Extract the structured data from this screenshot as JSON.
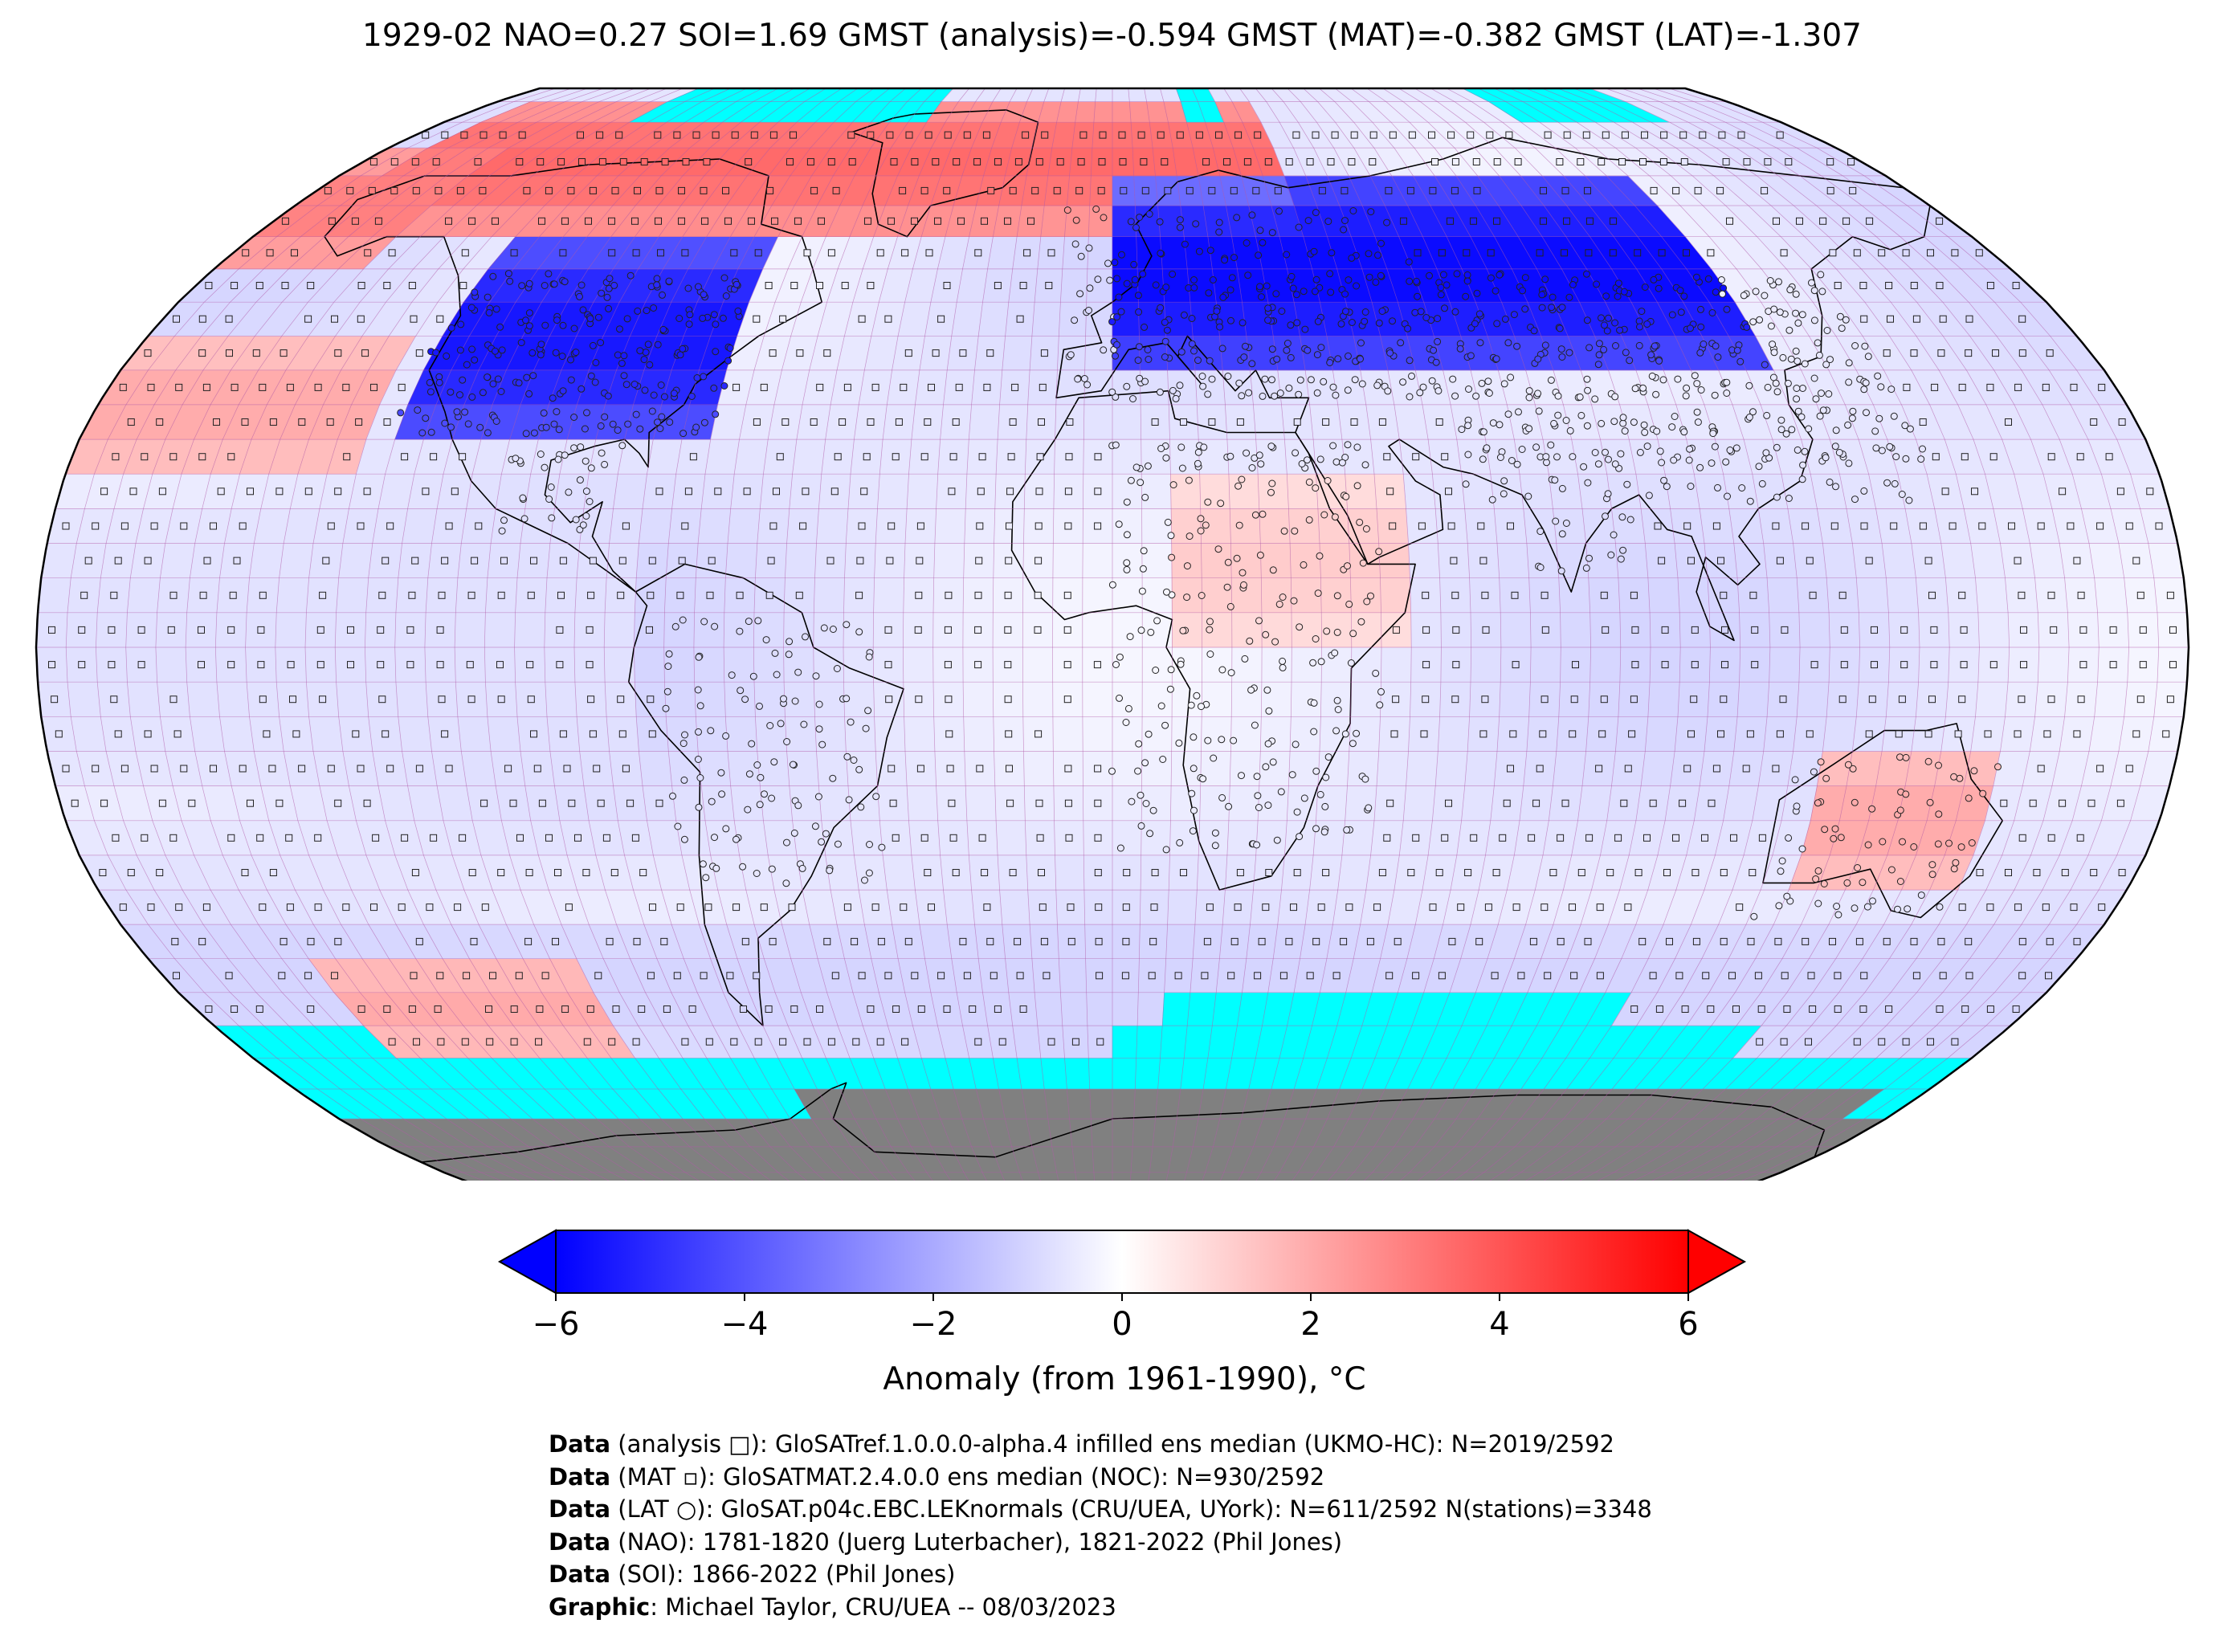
{
  "title": "1929-02 NAO=0.27 SOI=1.69 GMST (analysis)=-0.594 GMST (MAT)=-0.382 GMST (LAT)=-1.307",
  "colors": {
    "sea_ice": "#00ffff",
    "antarctica_land": "#808080",
    "grid_line": "#b05aa8",
    "coastline": "#000000",
    "cold_extreme": "#0000ff",
    "neutral": "#ffffff",
    "warm_extreme": "#ff0000"
  },
  "colorbar": {
    "label": "Anomaly (from 1961-1990), °C",
    "vmin": -6,
    "vmax": 6,
    "ticks": [
      "−6",
      "−4",
      "−2",
      "0",
      "2",
      "4",
      "6"
    ],
    "tick_values": [
      -6,
      -4,
      -2,
      0,
      2,
      4,
      6
    ],
    "colormap": "bwr",
    "extend": "both"
  },
  "map": {
    "projection": "Robinson",
    "grid": "5x5 degree cells",
    "markers": {
      "analysis": "square",
      "MAT": "small square",
      "LAT": "circle"
    },
    "anomaly_regions": [
      {
        "region": "Arctic Canada / Greenland",
        "lat": [
          60,
          85
        ],
        "lon": [
          -170,
          40
        ],
        "value": 3.5
      },
      {
        "region": "Alaska / Bering",
        "lat": [
          55,
          75
        ],
        "lon": [
          180,
          210
        ],
        "value": 3.0
      },
      {
        "region": "North America",
        "lat": [
          30,
          60
        ],
        "lon": [
          -125,
          -70
        ],
        "value": -5.5
      },
      {
        "region": "Eurasia",
        "lat": [
          40,
          70
        ],
        "lon": [
          0,
          120
        ],
        "value": -5.8
      },
      {
        "region": "North Pacific",
        "lat": [
          25,
          45
        ],
        "lon": [
          -180,
          -130
        ],
        "value": 2.0
      },
      {
        "region": "Tropical Pacific",
        "lat": [
          -20,
          20
        ],
        "lon": [
          -180,
          -80
        ],
        "value": -0.7
      },
      {
        "region": "North Africa / Arabia",
        "lat": [
          0,
          25
        ],
        "lon": [
          10,
          50
        ],
        "value": 1.2
      },
      {
        "region": "Australia",
        "lat": [
          -35,
          -15
        ],
        "lon": [
          120,
          150
        ],
        "value": 2.0
      },
      {
        "region": "Southern Ocean",
        "lat": [
          -60,
          -40
        ],
        "lon": [
          -180,
          180
        ],
        "value": -1.0
      },
      {
        "region": "Southern Pacific warm band",
        "lat": [
          -60,
          -45
        ],
        "lon": [
          -150,
          -100
        ],
        "value": 2.0
      }
    ]
  },
  "credits": [
    {
      "bold": "Data",
      "text": " (analysis □): GloSATref.1.0.0.0-alpha.4 infilled ens median (UKMO-HC): N=2019/2592"
    },
    {
      "bold": "Data",
      "text": " (MAT ▫): GloSATMAT.2.4.0.0 ens median (NOC): N=930/2592"
    },
    {
      "bold": "Data",
      "text": " (LAT ○): GloSAT.p04c.EBC.LEKnormals (CRU/UEA, UYork): N=611/2592 N(stations)=3348"
    },
    {
      "bold": "Data",
      "text": " (NAO): 1781-1820 (Juerg Luterbacher), 1821-2022 (Phil Jones)"
    },
    {
      "bold": "Data",
      "text": " (SOI): 1866-2022 (Phil Jones)"
    },
    {
      "bold": "Graphic",
      "text": ": Michael Taylor, CRU/UEA -- 08/03/2023"
    }
  ]
}
